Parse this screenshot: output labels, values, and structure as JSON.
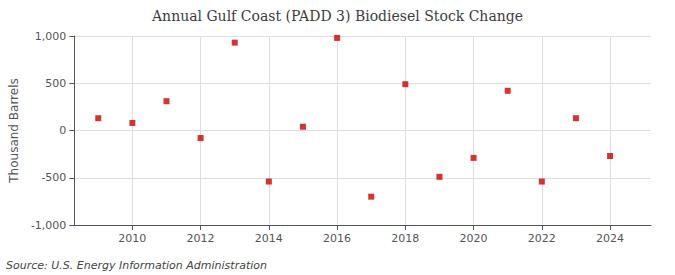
{
  "chart_data": {
    "type": "scatter",
    "title": "Annual Gulf Coast (PADD 3) Biodiesel Stock Change",
    "y_label": "Thousand Barrels",
    "source": "Source: U.S. Energy Information Administration",
    "x": [
      2009,
      2010,
      2011,
      2012,
      2013,
      2014,
      2015,
      2016,
      2017,
      2018,
      2019,
      2020,
      2021,
      2022,
      2023,
      2024
    ],
    "values": [
      130,
      80,
      310,
      -80,
      930,
      -540,
      40,
      980,
      -700,
      490,
      -490,
      -290,
      420,
      -540,
      130,
      -270
    ],
    "color": "#cc0000",
    "marker": "square",
    "xlim": [
      2008.3,
      2025.2
    ],
    "xticks": [
      2010,
      2012,
      2014,
      2016,
      2018,
      2020,
      2022,
      2024
    ],
    "ylim": [
      -1000,
      1000
    ],
    "yticks": [
      {
        "value": -1000,
        "label": "-1,000"
      },
      -500,
      0,
      500,
      {
        "value": 1000,
        "label": "1,000"
      }
    ],
    "grid": true
  }
}
